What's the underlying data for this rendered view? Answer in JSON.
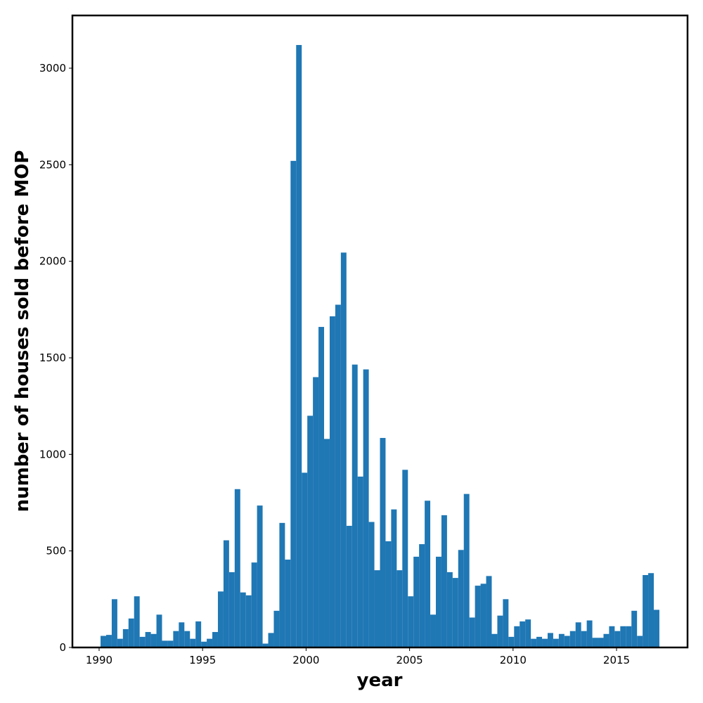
{
  "chart_data": {
    "type": "histogram",
    "xlabel": "year",
    "ylabel": "number of houses sold before MOP",
    "color": "#1f77b4",
    "bins": [
      1990.07,
      1990.34,
      1990.61,
      1990.88,
      1991.15,
      1991.42,
      1991.69,
      1991.96,
      1992.23,
      1992.5,
      1992.77,
      1993.04,
      1993.31,
      1993.58,
      1993.85,
      1994.12,
      1994.39,
      1994.66,
      1994.93,
      1995.2,
      1995.47,
      1995.74,
      1996.01,
      1996.28,
      1996.55,
      1996.82,
      1997.09,
      1997.36,
      1997.63,
      1997.9,
      1998.17,
      1998.44,
      1998.71,
      1998.98,
      1999.25,
      1999.52,
      1999.79,
      2000.06,
      2000.33,
      2000.6,
      2000.87,
      2001.14,
      2001.41,
      2001.68,
      2001.95,
      2002.22,
      2002.49,
      2002.76,
      2003.03,
      2003.3,
      2003.57,
      2003.84,
      2004.11,
      2004.38,
      2004.65,
      2004.92,
      2005.19,
      2005.46,
      2005.73,
      2006.0,
      2006.27,
      2006.54,
      2006.81,
      2007.08,
      2007.35,
      2007.62,
      2007.89,
      2008.16,
      2008.43,
      2008.7,
      2008.97,
      2009.24,
      2009.51,
      2009.78,
      2010.05,
      2010.32,
      2010.59,
      2010.86,
      2011.13,
      2011.4,
      2011.67,
      2011.94,
      2012.21,
      2012.48,
      2012.75,
      2013.02,
      2013.29,
      2013.56,
      2013.83,
      2014.1,
      2014.37,
      2014.64,
      2014.91,
      2015.18,
      2015.45,
      2015.72,
      2015.99,
      2016.26,
      2016.53,
      2016.8,
      2017.07
    ],
    "counts": [
      60,
      65,
      250,
      45,
      95,
      150,
      265,
      55,
      80,
      70,
      170,
      35,
      35,
      85,
      130,
      85,
      45,
      135,
      30,
      45,
      80,
      290,
      555,
      390,
      820,
      285,
      270,
      440,
      735,
      20,
      75,
      190,
      645,
      455,
      2520,
      3120,
      905,
      1200,
      1400,
      1660,
      1080,
      1715,
      1775,
      2045,
      630,
      1465,
      885,
      1440,
      650,
      400,
      1085,
      550,
      715,
      400,
      920,
      265,
      470,
      535,
      760,
      170,
      470,
      685,
      390,
      360,
      505,
      795,
      155,
      320,
      330,
      370,
      70,
      165,
      250,
      55,
      110,
      135,
      145,
      45,
      55,
      45,
      75,
      45,
      70,
      60,
      85,
      130,
      85,
      140,
      50,
      50,
      70,
      110,
      85,
      110,
      110,
      190,
      60,
      375,
      385,
      195
    ],
    "xlim": [
      1988.71,
      2018.43
    ],
    "ylim": [
      0,
      3273
    ],
    "xticks": [
      1990,
      1995,
      2000,
      2005,
      2010,
      2015
    ],
    "yticks": [
      0,
      500,
      1000,
      1500,
      2000,
      2500,
      3000
    ]
  }
}
